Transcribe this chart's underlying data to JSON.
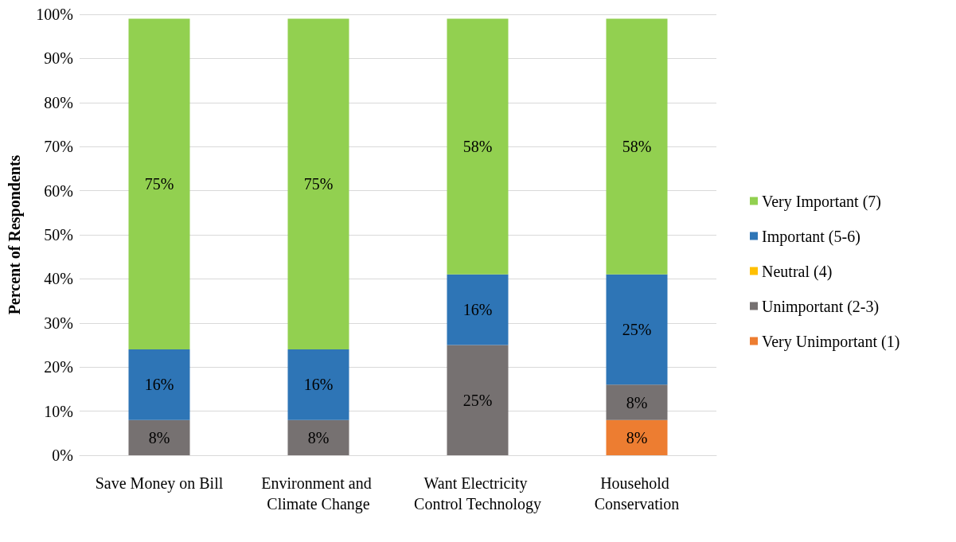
{
  "chart_data": {
    "type": "bar",
    "stacked": true,
    "ylabel": "Percent of Respondents",
    "categories": [
      "Save Money on Bill",
      "Environment and Climate Change",
      "Want Electricity Control Technology",
      "Household Conservation"
    ],
    "series": [
      {
        "name": "Very Unimportant (1)",
        "color": "#ed7d31",
        "values": [
          null,
          null,
          null,
          8
        ],
        "value_labels": [
          null,
          null,
          null,
          "8%"
        ]
      },
      {
        "name": "Unimportant (2-3)",
        "color": "#767171",
        "values": [
          8,
          8,
          25,
          8
        ],
        "value_labels": [
          "8%",
          "8%",
          "25%",
          "8%"
        ]
      },
      {
        "name": "Neutral (4)",
        "color": "#ffc000",
        "values": [
          null,
          null,
          null,
          null
        ]
      },
      {
        "name": "Important (5-6)",
        "color": "#2e75b6",
        "values": [
          16,
          16,
          16,
          25
        ],
        "value_labels": [
          "16%",
          "16%",
          "16%",
          "25%"
        ]
      },
      {
        "name": "Very Important (7)",
        "color": "#92d050",
        "values": [
          75,
          75,
          58,
          58
        ],
        "value_labels": [
          "75%",
          "75%",
          "58%",
          "58%"
        ]
      }
    ],
    "ylim": [
      0,
      100
    ],
    "yticks": [
      {
        "value": 0,
        "label": "0%"
      },
      {
        "value": 10,
        "label": "10%"
      },
      {
        "value": 20,
        "label": "20%"
      },
      {
        "value": 30,
        "label": "30%"
      },
      {
        "value": 40,
        "label": "40%"
      },
      {
        "value": 50,
        "label": "50%"
      },
      {
        "value": 60,
        "label": "60%"
      },
      {
        "value": 70,
        "label": "70%"
      },
      {
        "value": 80,
        "label": "80%"
      },
      {
        "value": 90,
        "label": "90%"
      },
      {
        "value": 100,
        "label": "100%"
      }
    ],
    "grid": "y",
    "legend": "right"
  }
}
